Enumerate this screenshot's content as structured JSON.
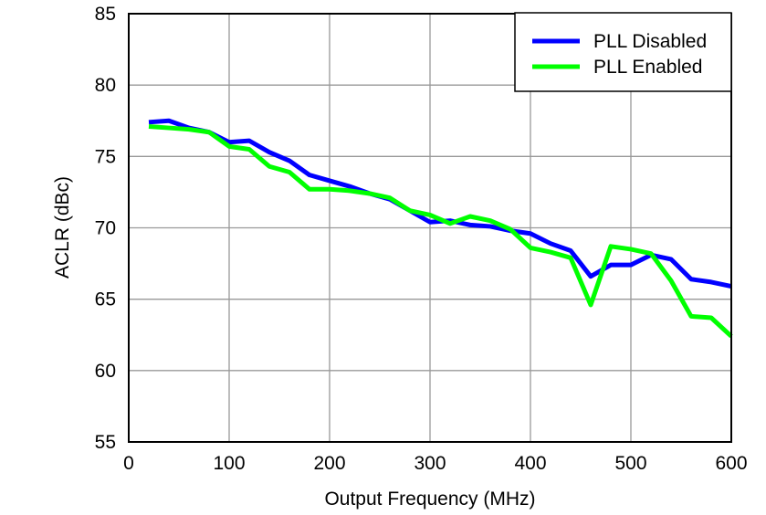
{
  "chart_data": {
    "type": "line",
    "title": "",
    "xlabel": "Output Frequency (MHz)",
    "ylabel": "ACLR (dBc)",
    "xlim": [
      0,
      600
    ],
    "ylim": [
      55,
      85
    ],
    "xticks": [
      0,
      100,
      200,
      300,
      400,
      500,
      600
    ],
    "yticks": [
      55,
      60,
      65,
      70,
      75,
      80,
      85
    ],
    "grid": true,
    "legend_position": "top-right",
    "x": [
      20,
      40,
      60,
      80,
      100,
      120,
      140,
      160,
      180,
      200,
      220,
      240,
      260,
      280,
      300,
      320,
      340,
      360,
      380,
      400,
      420,
      440,
      460,
      480,
      500,
      520,
      540,
      560,
      580,
      600
    ],
    "series": [
      {
        "name": "PLL Disabled",
        "color": "#0000ff",
        "values": [
          77.4,
          77.5,
          77.0,
          76.7,
          76.0,
          76.1,
          75.3,
          74.7,
          73.7,
          73.3,
          72.9,
          72.4,
          72.0,
          71.2,
          70.4,
          70.5,
          70.2,
          70.1,
          69.8,
          69.6,
          68.9,
          68.4,
          66.6,
          67.4,
          67.4,
          68.1,
          67.8,
          66.4,
          66.2,
          65.9
        ]
      },
      {
        "name": "PLL Enabled",
        "color": "#00ff00",
        "values": [
          77.1,
          77.0,
          76.9,
          76.7,
          75.7,
          75.5,
          74.3,
          73.9,
          72.7,
          72.7,
          72.6,
          72.4,
          72.1,
          71.2,
          70.9,
          70.3,
          70.8,
          70.5,
          69.9,
          68.6,
          68.3,
          67.9,
          64.6,
          68.7,
          68.5,
          68.2,
          66.3,
          63.8,
          63.7,
          62.4
        ]
      }
    ]
  }
}
